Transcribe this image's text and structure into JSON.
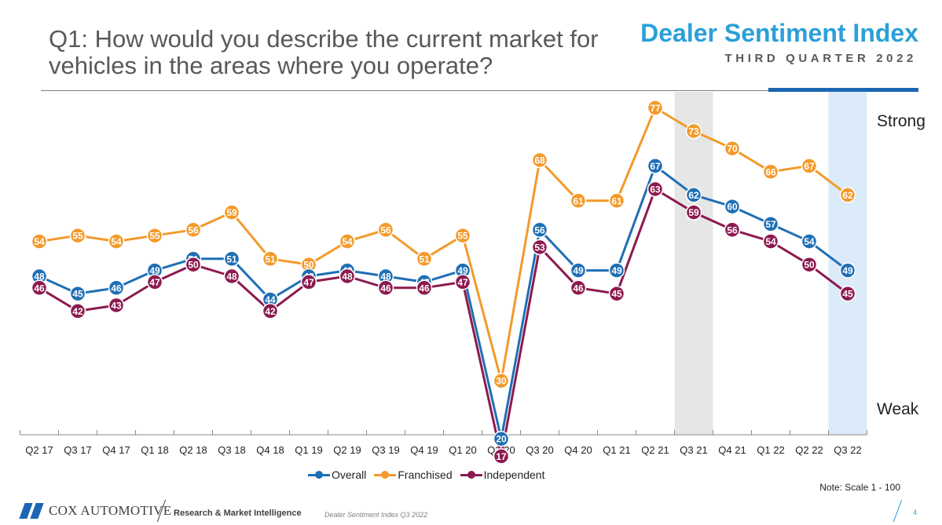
{
  "header": {
    "question_line1": "Q1: How would you describe the current market for",
    "question_line2": "vehicles in the areas where you operate?",
    "brand_title": "Dealer Sentiment Index",
    "brand_subtitle": "THIRD QUARTER 2022"
  },
  "colors": {
    "overall": "#1f6fb5",
    "franchised": "#f39a2b",
    "independent": "#8c1a4f",
    "brand_blue": "#2aa0d8",
    "shade_grey": "#e6e6e6",
    "shade_blue": "#dcebfa"
  },
  "chart_data": {
    "type": "line",
    "title": "",
    "xlabel": "",
    "ylabel": "",
    "ylim": [
      0,
      100
    ],
    "y_top_label": "Strong",
    "y_bottom_label": "Weak",
    "categories": [
      "Q2 17",
      "Q3 17",
      "Q4 17",
      "Q1 18",
      "Q2 18",
      "Q3 18",
      "Q4 18",
      "Q1 19",
      "Q2 19",
      "Q3 19",
      "Q4 19",
      "Q1 20",
      "Q2 20",
      "Q3 20",
      "Q4 20",
      "Q1 21",
      "Q2 21",
      "Q3 21",
      "Q4 21",
      "Q1 22",
      "Q2 22",
      "Q3 22"
    ],
    "series": [
      {
        "name": "Overall",
        "color_key": "overall",
        "values": [
          48,
          45,
          46,
          49,
          51,
          51,
          44,
          48,
          49,
          48,
          47,
          49,
          20,
          56,
          49,
          49,
          67,
          62,
          60,
          57,
          54,
          49
        ]
      },
      {
        "name": "Franchised",
        "color_key": "franchised",
        "values": [
          54,
          55,
          54,
          55,
          56,
          59,
          51,
          50,
          54,
          56,
          51,
          55,
          30,
          68,
          61,
          61,
          77,
          73,
          70,
          66,
          67,
          62
        ]
      },
      {
        "name": "Independent",
        "color_key": "independent",
        "values": [
          46,
          42,
          43,
          47,
          50,
          48,
          42,
          47,
          48,
          46,
          46,
          47,
          17,
          53,
          46,
          45,
          63,
          59,
          56,
          54,
          50,
          45
        ]
      }
    ],
    "highlighted_periods": [
      {
        "category": "Q3 21",
        "color_key": "shade_grey"
      },
      {
        "category": "Q3 22",
        "color_key": "shade_blue"
      }
    ],
    "legend": {
      "position": "bottom-center",
      "entries": [
        "Overall",
        "Franchised",
        "Independent"
      ]
    },
    "grid": false
  },
  "note": "Note: Scale 1 - 100",
  "footer": {
    "logo_text": "COX AUTOMOTIVE",
    "unit": "Research & Market Intelligence",
    "doc_name": "Dealer Sentiment Index Q3 2022",
    "page_number": "4"
  }
}
